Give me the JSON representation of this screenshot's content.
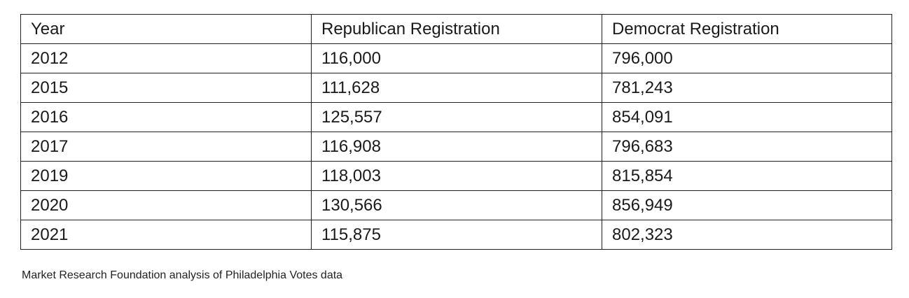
{
  "chart_data": {
    "type": "table",
    "columns": [
      "Year",
      "Republican Registration",
      "Democrat Registration"
    ],
    "rows": [
      [
        "2012",
        "116,000",
        "796,000"
      ],
      [
        "2015",
        "111,628",
        "781,243"
      ],
      [
        "2016",
        "125,557",
        "854,091"
      ],
      [
        "2017",
        "116,908",
        "796,683"
      ],
      [
        "2019",
        "118,003",
        "815,854"
      ],
      [
        "2020",
        "130,566",
        "856,949"
      ],
      [
        "2021",
        "115,875",
        "802,323"
      ]
    ],
    "series": [
      {
        "name": "Republican Registration",
        "values": [
          116000,
          111628,
          125557,
          116908,
          118003,
          130566,
          115875
        ]
      },
      {
        "name": "Democrat Registration",
        "values": [
          796000,
          781243,
          854091,
          796683,
          815854,
          856949,
          802323
        ]
      }
    ],
    "categories": [
      "2012",
      "2015",
      "2016",
      "2017",
      "2019",
      "2020",
      "2021"
    ]
  },
  "source_note": "Market Research Foundation analysis of Philadelphia Votes data"
}
